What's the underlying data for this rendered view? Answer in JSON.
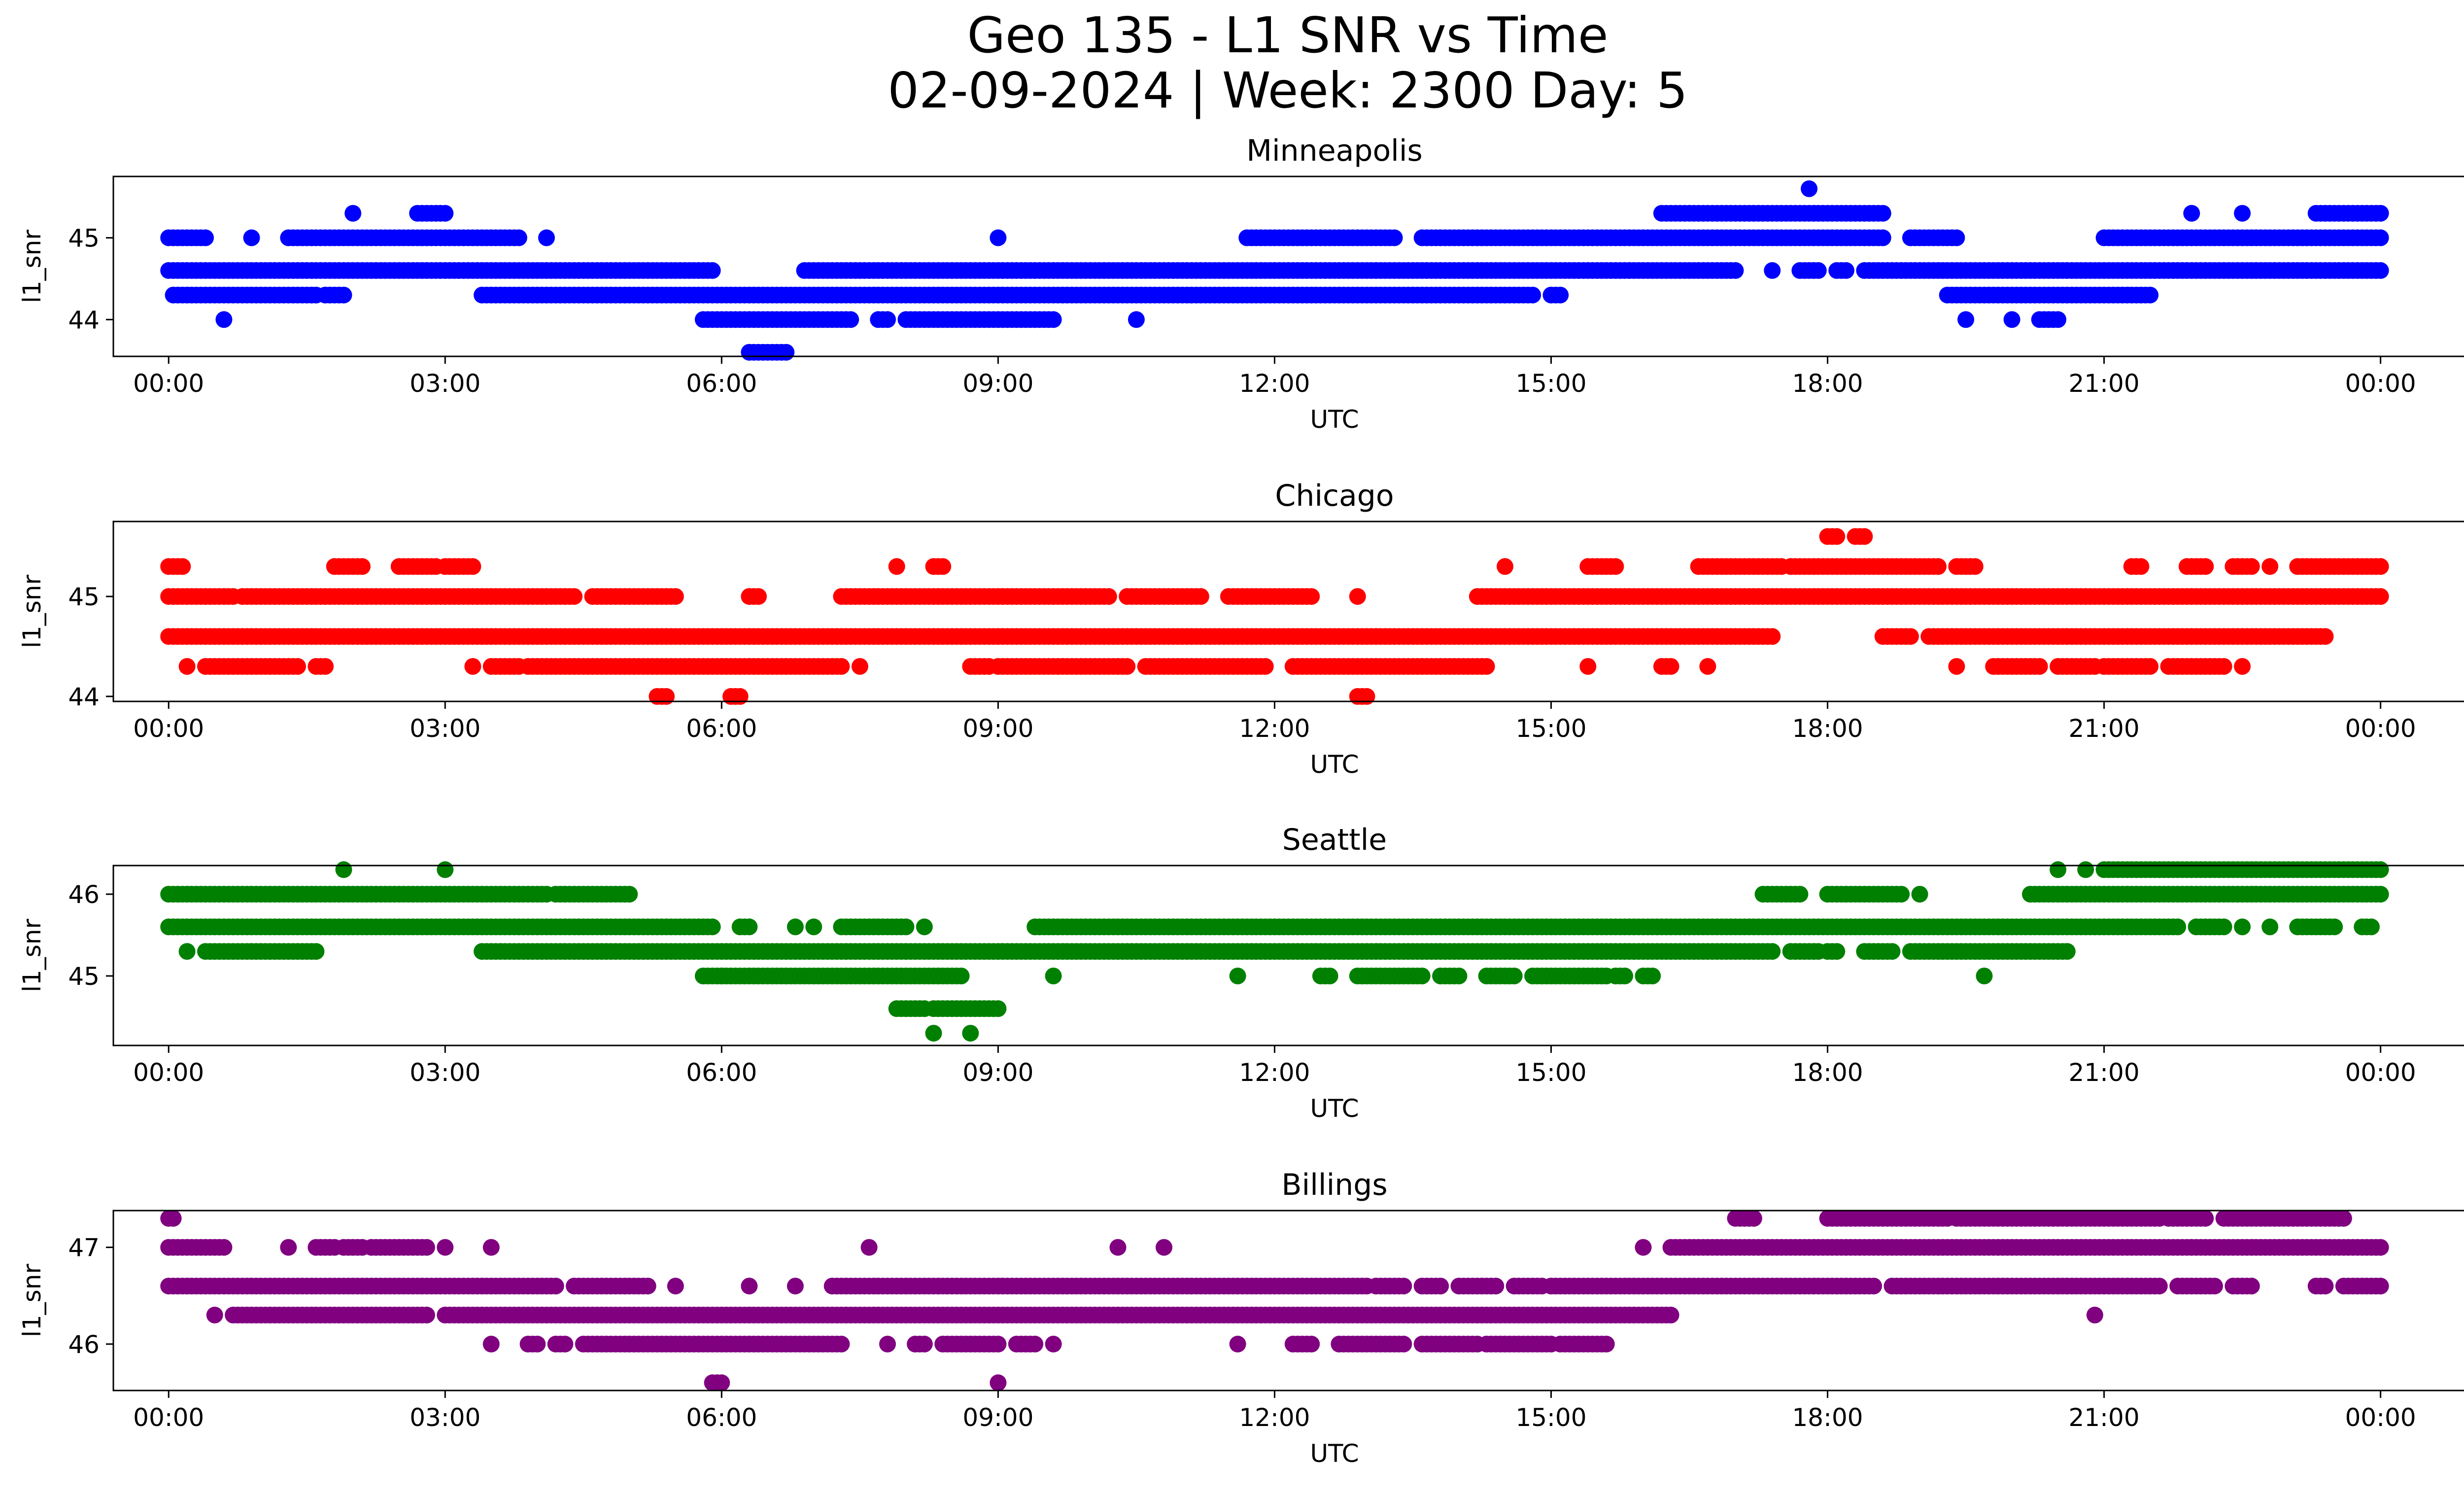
{
  "figure": {
    "title_line1": "Geo 135 - L1 SNR vs Time",
    "title_line2": "02-09-2024 | Week: 2300 Day: 5"
  },
  "chart_data": [
    {
      "type": "scatter",
      "title": "Minneapolis",
      "xlabel": "UTC",
      "ylabel": "l1_snr",
      "color": "#0000ff",
      "xlim": [
        -0.6,
        25.9
      ],
      "ylim": [
        43.55,
        45.75
      ],
      "x_ticks": [
        0,
        3,
        6,
        9,
        12,
        15,
        18,
        21,
        24
      ],
      "x_tick_labels": [
        "00:00",
        "03:00",
        "06:00",
        "09:00",
        "12:00",
        "15:00",
        "18:00",
        "21:00",
        "00:00"
      ],
      "y_ticks": [
        44,
        45
      ],
      "y_tick_labels": [
        "44",
        "45"
      ],
      "segments": [
        {
          "y": 45.3,
          "x_ranges": [
            [
              2.0,
              2.0
            ],
            [
              2.7,
              3.0
            ],
            [
              16.2,
              18.6
            ],
            [
              21.95,
              21.95
            ],
            [
              22.5,
              22.5
            ],
            [
              23.3,
              24.0
            ]
          ]
        },
        {
          "y": 45.0,
          "x_ranges": [
            [
              0.0,
              0.4
            ],
            [
              0.9,
              0.9
            ],
            [
              1.3,
              3.8
            ],
            [
              4.1,
              4.1
            ],
            [
              9.0,
              9.0
            ],
            [
              11.7,
              13.3
            ],
            [
              13.6,
              18.6
            ],
            [
              18.9,
              19.4
            ],
            [
              21.0,
              24.0
            ]
          ]
        },
        {
          "y": 44.6,
          "x_ranges": [
            [
              0.0,
              5.9
            ],
            [
              6.9,
              17.0
            ],
            [
              17.4,
              17.4
            ],
            [
              17.7,
              17.9
            ],
            [
              18.1,
              18.2
            ],
            [
              18.4,
              24.0
            ]
          ]
        },
        {
          "y": 44.3,
          "x_ranges": [
            [
              0.05,
              1.6
            ],
            [
              1.7,
              1.9
            ],
            [
              3.4,
              14.8
            ],
            [
              15.0,
              15.1
            ],
            [
              19.3,
              21.5
            ]
          ]
        },
        {
          "y": 44.0,
          "x_ranges": [
            [
              0.6,
              0.6
            ],
            [
              5.8,
              7.4
            ],
            [
              7.7,
              7.8
            ],
            [
              8.0,
              9.6
            ],
            [
              10.5,
              10.5
            ],
            [
              19.5,
              19.5
            ],
            [
              20.0,
              20.0
            ],
            [
              20.3,
              20.5
            ]
          ]
        },
        {
          "y": 43.6,
          "x_ranges": [
            [
              6.3,
              6.7
            ]
          ]
        },
        {
          "y": 45.6,
          "x_ranges": [
            [
              17.8,
              17.8
            ]
          ]
        }
      ]
    },
    {
      "type": "scatter",
      "title": "Chicago",
      "xlabel": "UTC",
      "ylabel": "l1_snr",
      "color": "#ff0000",
      "xlim": [
        -0.6,
        25.9
      ],
      "ylim": [
        43.95,
        45.75
      ],
      "x_ticks": [
        0,
        3,
        6,
        9,
        12,
        15,
        18,
        21,
        24
      ],
      "x_tick_labels": [
        "00:00",
        "03:00",
        "06:00",
        "09:00",
        "12:00",
        "15:00",
        "18:00",
        "21:00",
        "00:00"
      ],
      "y_ticks": [
        44,
        45
      ],
      "y_tick_labels": [
        "44",
        "45"
      ],
      "segments": [
        {
          "y": 45.3,
          "x_ranges": [
            [
              0.0,
              0.15
            ],
            [
              1.8,
              2.1
            ],
            [
              2.5,
              2.9
            ],
            [
              3.0,
              3.3
            ],
            [
              7.9,
              7.9
            ],
            [
              8.3,
              8.4
            ],
            [
              14.5,
              14.5
            ],
            [
              15.4,
              15.7
            ],
            [
              16.6,
              17.5
            ],
            [
              17.6,
              19.2
            ],
            [
              19.4,
              19.6
            ],
            [
              21.3,
              21.4
            ],
            [
              21.9,
              22.1
            ],
            [
              22.4,
              22.6
            ],
            [
              22.8,
              22.8
            ],
            [
              23.1,
              24.0
            ]
          ]
        },
        {
          "y": 45.0,
          "x_ranges": [
            [
              0.0,
              0.7
            ],
            [
              0.8,
              4.4
            ],
            [
              4.6,
              5.5
            ],
            [
              6.3,
              6.4
            ],
            [
              7.3,
              10.2
            ],
            [
              10.4,
              11.2
            ],
            [
              11.5,
              12.4
            ],
            [
              12.9,
              12.9
            ],
            [
              14.2,
              24.0
            ]
          ]
        },
        {
          "y": 44.6,
          "x_ranges": [
            [
              0.0,
              17.4
            ],
            [
              18.6,
              18.9
            ],
            [
              19.1,
              23.4
            ]
          ]
        },
        {
          "y": 44.3,
          "x_ranges": [
            [
              0.2,
              0.2
            ],
            [
              0.4,
              1.4
            ],
            [
              1.6,
              1.7
            ],
            [
              3.3,
              3.3
            ],
            [
              3.5,
              3.8
            ],
            [
              3.9,
              7.3
            ],
            [
              7.5,
              7.5
            ],
            [
              8.7,
              8.9
            ],
            [
              9.0,
              10.4
            ],
            [
              10.6,
              11.9
            ],
            [
              12.2,
              14.3
            ],
            [
              15.4,
              15.4
            ],
            [
              16.2,
              16.3
            ],
            [
              16.7,
              16.7
            ],
            [
              19.4,
              19.4
            ],
            [
              19.8,
              20.3
            ],
            [
              20.5,
              20.9
            ],
            [
              21.0,
              21.5
            ],
            [
              21.7,
              22.3
            ],
            [
              22.5,
              22.5
            ]
          ]
        },
        {
          "y": 44.0,
          "x_ranges": [
            [
              5.3,
              5.4
            ],
            [
              6.1,
              6.2
            ],
            [
              12.9,
              13.0
            ]
          ]
        },
        {
          "y": 45.6,
          "x_ranges": [
            [
              18.0,
              18.1
            ],
            [
              18.3,
              18.4
            ]
          ]
        }
      ]
    },
    {
      "type": "scatter",
      "title": "Seattle",
      "xlabel": "UTC",
      "ylabel": "l1_snr",
      "color": "#008000",
      "xlim": [
        -0.6,
        25.9
      ],
      "ylim": [
        44.15,
        46.35
      ],
      "x_ticks": [
        0,
        3,
        6,
        9,
        12,
        15,
        18,
        21,
        24
      ],
      "x_tick_labels": [
        "00:00",
        "03:00",
        "06:00",
        "09:00",
        "12:00",
        "15:00",
        "18:00",
        "21:00",
        "00:00"
      ],
      "y_ticks": [
        45,
        46
      ],
      "y_tick_labels": [
        "45",
        "46"
      ],
      "segments": [
        {
          "y": 46.3,
          "x_ranges": [
            [
              1.9,
              1.9
            ],
            [
              3.0,
              3.0
            ],
            [
              20.5,
              20.5
            ],
            [
              20.8,
              20.8
            ],
            [
              21.0,
              24.0
            ]
          ]
        },
        {
          "y": 46.0,
          "x_ranges": [
            [
              0.0,
              4.1
            ],
            [
              4.2,
              5.0
            ],
            [
              17.3,
              17.7
            ],
            [
              18.0,
              18.8
            ],
            [
              19.0,
              19.0
            ],
            [
              20.2,
              24.0
            ]
          ]
        },
        {
          "y": 45.6,
          "x_ranges": [
            [
              0.0,
              5.9
            ],
            [
              6.2,
              6.3
            ],
            [
              6.8,
              6.8
            ],
            [
              7.0,
              7.0
            ],
            [
              7.3,
              8.0
            ],
            [
              8.2,
              8.2
            ],
            [
              9.4,
              21.8
            ],
            [
              22.0,
              22.3
            ],
            [
              22.5,
              22.5
            ],
            [
              22.8,
              22.8
            ],
            [
              23.1,
              23.5
            ],
            [
              23.8,
              23.9
            ]
          ]
        },
        {
          "y": 45.3,
          "x_ranges": [
            [
              0.2,
              0.2
            ],
            [
              0.4,
              1.6
            ],
            [
              3.4,
              17.4
            ],
            [
              17.6,
              17.9
            ],
            [
              18.0,
              18.1
            ],
            [
              18.4,
              18.7
            ],
            [
              18.9,
              20.6
            ]
          ]
        },
        {
          "y": 45.0,
          "x_ranges": [
            [
              5.8,
              6.0
            ],
            [
              6.0,
              8.6
            ],
            [
              9.6,
              9.6
            ],
            [
              11.6,
              11.6
            ],
            [
              12.5,
              12.6
            ],
            [
              12.9,
              13.6
            ],
            [
              13.8,
              14.0
            ],
            [
              14.3,
              14.6
            ],
            [
              14.8,
              15.6
            ],
            [
              15.7,
              15.8
            ],
            [
              16.0,
              16.1
            ],
            [
              19.7,
              19.7
            ]
          ]
        },
        {
          "y": 44.6,
          "x_ranges": [
            [
              7.9,
              8.2
            ],
            [
              8.3,
              9.0
            ]
          ]
        },
        {
          "y": 44.3,
          "x_ranges": [
            [
              8.3,
              8.3
            ],
            [
              8.7,
              8.7
            ]
          ]
        }
      ]
    },
    {
      "type": "scatter",
      "title": "Billings",
      "xlabel": "UTC",
      "ylabel": "l1_snr",
      "color": "#800080",
      "xlim": [
        -0.6,
        25.9
      ],
      "ylim": [
        45.52,
        47.38
      ],
      "x_ticks": [
        0,
        3,
        6,
        9,
        12,
        15,
        18,
        21,
        24
      ],
      "x_tick_labels": [
        "00:00",
        "03:00",
        "06:00",
        "09:00",
        "12:00",
        "15:00",
        "18:00",
        "21:00",
        "00:00"
      ],
      "y_ticks": [
        46,
        47
      ],
      "y_tick_labels": [
        "46",
        "47"
      ],
      "segments": [
        {
          "y": 47.3,
          "x_ranges": [
            [
              0.0,
              0.05
            ],
            [
              17.0,
              17.2
            ],
            [
              18.0,
              19.3
            ],
            [
              19.4,
              21.6
            ],
            [
              21.7,
              22.1
            ],
            [
              22.3,
              23.6
            ]
          ]
        },
        {
          "y": 47.0,
          "x_ranges": [
            [
              0.0,
              0.6
            ],
            [
              1.3,
              1.3
            ],
            [
              1.6,
              1.8
            ],
            [
              1.9,
              2.1
            ],
            [
              2.2,
              2.8
            ],
            [
              3.0,
              3.0
            ],
            [
              3.5,
              3.5
            ],
            [
              7.6,
              7.6
            ],
            [
              10.3,
              10.3
            ],
            [
              10.8,
              10.8
            ],
            [
              16.0,
              16.0
            ],
            [
              16.3,
              24.0
            ]
          ]
        },
        {
          "y": 46.6,
          "x_ranges": [
            [
              0.0,
              4.2
            ],
            [
              4.4,
              5.2
            ],
            [
              5.5,
              5.5
            ],
            [
              6.3,
              6.3
            ],
            [
              6.8,
              6.8
            ],
            [
              7.2,
              13.0
            ],
            [
              13.1,
              13.4
            ],
            [
              13.6,
              13.8
            ],
            [
              14.0,
              14.4
            ],
            [
              14.6,
              14.9
            ],
            [
              15.0,
              18.5
            ],
            [
              18.7,
              21.6
            ],
            [
              21.8,
              22.2
            ],
            [
              22.4,
              22.6
            ],
            [
              23.3,
              23.4
            ],
            [
              23.6,
              24.0
            ]
          ]
        },
        {
          "y": 46.3,
          "x_ranges": [
            [
              0.5,
              0.5
            ],
            [
              0.7,
              2.8
            ],
            [
              3.0,
              16.3
            ],
            [
              20.9,
              20.9
            ]
          ]
        },
        {
          "y": 46.0,
          "x_ranges": [
            [
              3.5,
              3.5
            ],
            [
              3.9,
              4.0
            ],
            [
              4.2,
              4.3
            ],
            [
              4.5,
              7.3
            ],
            [
              7.8,
              7.8
            ],
            [
              8.1,
              8.2
            ],
            [
              8.4,
              9.0
            ],
            [
              9.2,
              9.4
            ],
            [
              9.6,
              9.6
            ],
            [
              11.6,
              11.6
            ],
            [
              12.2,
              12.4
            ],
            [
              12.7,
              13.4
            ],
            [
              13.6,
              14.2
            ],
            [
              14.3,
              15.0
            ],
            [
              15.1,
              15.6
            ]
          ]
        },
        {
          "y": 45.6,
          "x_ranges": [
            [
              5.9,
              6.0
            ],
            [
              9.0,
              9.0
            ]
          ]
        }
      ]
    }
  ]
}
